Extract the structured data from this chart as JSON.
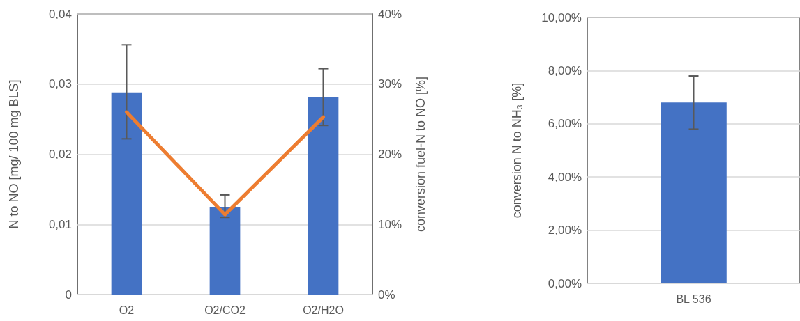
{
  "chart_data": [
    {
      "type": "bar",
      "categories": [
        "O2",
        "O2/CO2",
        "O2/H2O"
      ],
      "ylabel": "N to NO [mg/ 100 mg BLS]",
      "y2label": "conversion fuel-N to NO [%]",
      "ylim": [
        0,
        0.04
      ],
      "yticks": [
        {
          "value": 0,
          "label": "0"
        },
        {
          "value": 0.01,
          "label": "0,01"
        },
        {
          "value": 0.02,
          "label": "0,02"
        },
        {
          "value": 0.03,
          "label": "0,03"
        },
        {
          "value": 0.04,
          "label": "0,04"
        }
      ],
      "y2lim": [
        0,
        40
      ],
      "y2ticks": [
        {
          "value": 0,
          "label": "0%"
        },
        {
          "value": 10,
          "label": "10%"
        },
        {
          "value": 20,
          "label": "20%"
        },
        {
          "value": 30,
          "label": "30%"
        },
        {
          "value": 40,
          "label": "40%"
        }
      ],
      "grid": "y",
      "marker": "none",
      "series": [
        {
          "color": "#4472c4",
          "values": [
            0.0288,
            0.0125,
            0.0281
          ],
          "errors": [
            [
              0.0222,
              0.0356
            ],
            [
              0.011,
              0.0142
            ],
            [
              0.0241,
              0.0322
            ]
          ]
        },
        {
          "type": "line",
          "axis": "y2",
          "color": "#ed7d31",
          "values": [
            26,
            11.4,
            25.3
          ]
        }
      ]
    },
    {
      "type": "bar",
      "categories": [
        "BL 536"
      ],
      "ylabel": "conversion N to NH₃ [%]",
      "ylim": [
        0,
        10
      ],
      "yticks": [
        {
          "value": 0,
          "label": "0,00%"
        },
        {
          "value": 2,
          "label": "2,00%"
        },
        {
          "value": 4,
          "label": "4,00%"
        },
        {
          "value": 6,
          "label": "6,00%"
        },
        {
          "value": 8,
          "label": "8,00%"
        },
        {
          "value": 10,
          "label": "10,00%"
        }
      ],
      "grid": "y",
      "series": [
        {
          "color": "#4472c4",
          "values": [
            6.8
          ],
          "errors": [
            [
              5.8,
              7.8
            ]
          ]
        }
      ]
    }
  ]
}
